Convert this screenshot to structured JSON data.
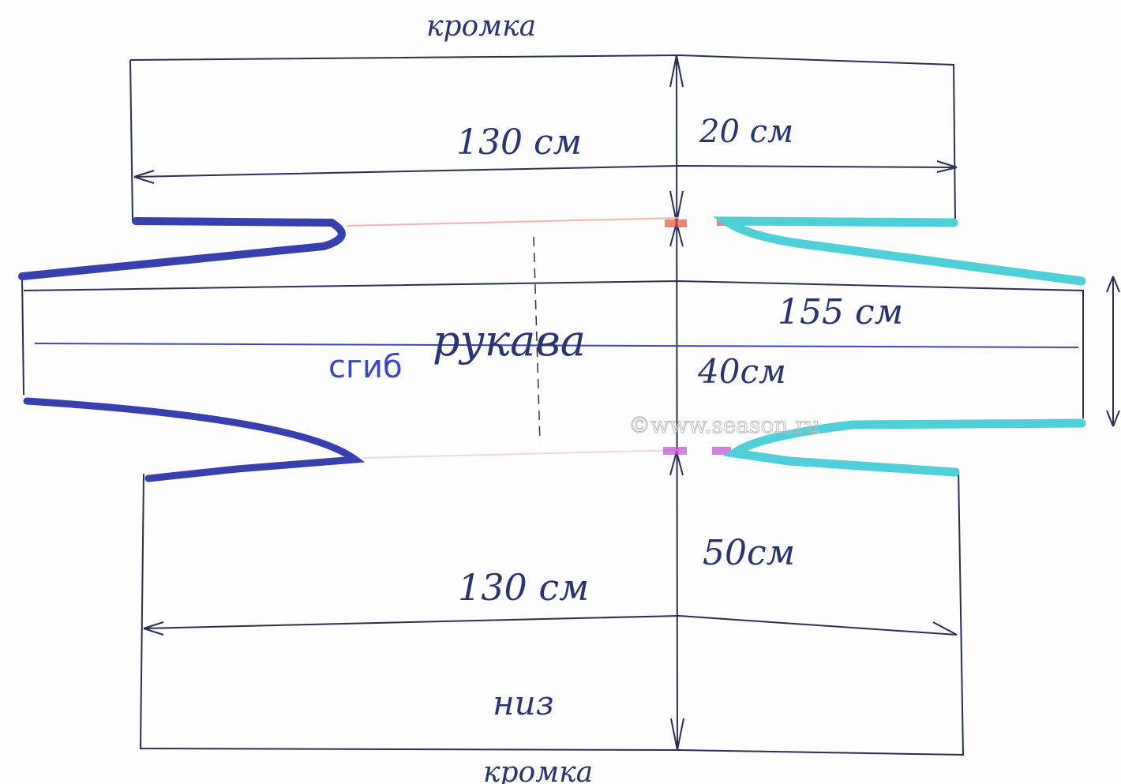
{
  "labels": {
    "top_edge": "кромка",
    "top_width": "130 см",
    "top_height": "20 см",
    "sleeve_width": "155 см",
    "sleeves": "рукава",
    "fold": "сгиб",
    "middle_height": "40см",
    "bottom_height": "50см",
    "bottom_width": "130 см",
    "bottom": "низ",
    "bottom_edge": "кромка"
  },
  "watermark": "©www.season.ru",
  "colors": {
    "pen": "#2b2f55",
    "dark_blue_line": "#3a3fb0",
    "cyan_line": "#4fd0d8",
    "fold_line": "#3b48c4",
    "marker_red": "#e0533a",
    "marker_magenta": "#c04ad0"
  }
}
